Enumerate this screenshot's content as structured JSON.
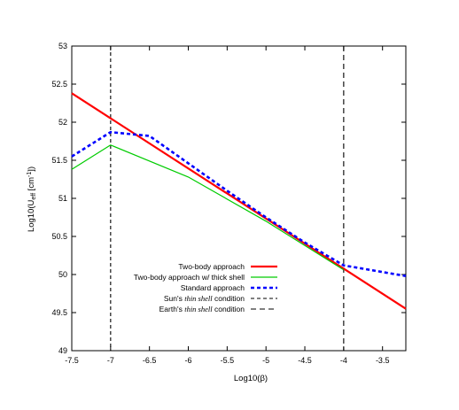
{
  "chart_data": {
    "type": "line",
    "title": "",
    "xlabel": "Log10(β)",
    "ylabel_parts": {
      "base": "Log10(U",
      "sub": "eff",
      "mid": " [cm",
      "sup": "-1",
      "end": "])"
    },
    "xlim": [
      -7.5,
      -3.2
    ],
    "ylim": [
      49,
      53
    ],
    "x_ticks": [
      -7.5,
      -7,
      -6.5,
      -6,
      -5.5,
      -5,
      -4.5,
      -4,
      -3.5
    ],
    "x_tick_labels": [
      "-7.5",
      "-7",
      "-6.5",
      "-6",
      "-5.5",
      "-5",
      "-4.5",
      "-4",
      "-3.5"
    ],
    "y_ticks": [
      49,
      49.5,
      50,
      50.5,
      51,
      51.5,
      52,
      52.5,
      53
    ],
    "y_tick_labels": [
      "49",
      "49.5",
      "50",
      "50.5",
      "51",
      "51.5",
      "52",
      "52.5",
      "53"
    ],
    "grid": false,
    "legend_position": "bottom-center",
    "series": [
      {
        "name": "Two-body approach",
        "color": "#ff0000",
        "dash": "solid",
        "width": 2.2,
        "x": [
          -7.5,
          -3.2
        ],
        "y": [
          52.38,
          49.55
        ]
      },
      {
        "name": "Two-body approach w/ thick shell",
        "color": "#00cc00",
        "dash": "solid",
        "width": 1.2,
        "x": [
          -7.5,
          -7.0,
          -6.0,
          -5.0,
          -4.0
        ],
        "y": [
          51.38,
          51.7,
          51.28,
          50.7,
          50.06
        ]
      },
      {
        "name": "Standard approach",
        "color": "#0000ff",
        "dash": "dotted",
        "width": 2.6,
        "x": [
          -7.5,
          -7.0,
          -6.5,
          -6.0,
          -5.5,
          -5.0,
          -4.5,
          -4.0,
          -3.2
        ],
        "y": [
          51.55,
          51.87,
          51.82,
          51.46,
          51.1,
          50.75,
          50.42,
          50.12,
          49.98
        ]
      }
    ],
    "vlines": [
      {
        "name_parts": [
          "Sun's ",
          "thin shell",
          " condition"
        ],
        "x": -7,
        "color": "#000000",
        "dash": "short"
      },
      {
        "name_parts": [
          "Earth's ",
          "thin shell",
          " condition"
        ],
        "x": -4,
        "color": "#000000",
        "dash": "long"
      }
    ]
  }
}
